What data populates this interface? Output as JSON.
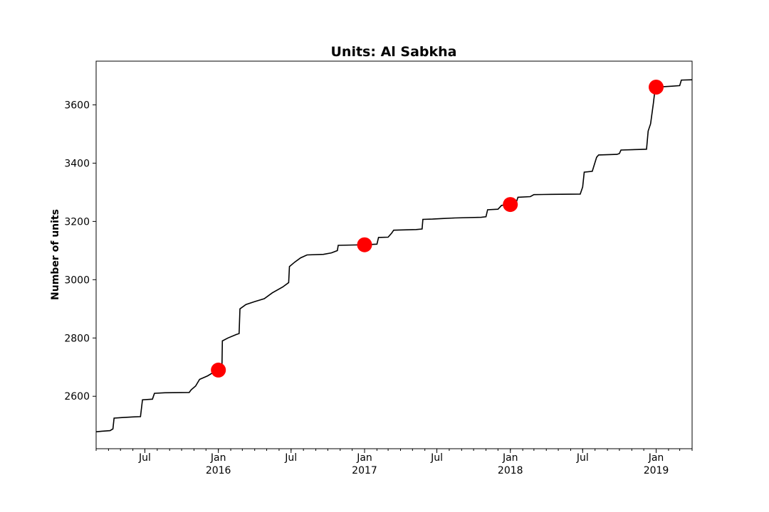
{
  "chart_data": {
    "type": "line",
    "title": "Units: Al Sabkha",
    "xlabel": "",
    "ylabel": "Number of units",
    "xlim": [
      "2015-03-01",
      "2019-04-01"
    ],
    "ylim": [
      2420,
      3750
    ],
    "grid": false,
    "legend": "none",
    "line_color": "#000000",
    "marker_color": "#ff0000",
    "yticks": [
      2600,
      2800,
      3000,
      3200,
      3400,
      3600
    ],
    "xticks": [
      {
        "date": "2015-07-01",
        "label": "Jul",
        "year": ""
      },
      {
        "date": "2016-01-01",
        "label": "Jan",
        "year": "2016"
      },
      {
        "date": "2016-07-01",
        "label": "Jul",
        "year": ""
      },
      {
        "date": "2017-01-01",
        "label": "Jan",
        "year": "2017"
      },
      {
        "date": "2017-07-01",
        "label": "Jul",
        "year": ""
      },
      {
        "date": "2018-01-01",
        "label": "Jan",
        "year": "2018"
      },
      {
        "date": "2018-07-01",
        "label": "Jul",
        "year": ""
      },
      {
        "date": "2019-01-01",
        "label": "Jan",
        "year": "2019"
      }
    ],
    "series": [
      {
        "values": [
          [
            "2015-03-01",
            2478
          ],
          [
            "2015-03-15",
            2480
          ],
          [
            "2015-04-05",
            2482
          ],
          [
            "2015-04-12",
            2488
          ],
          [
            "2015-04-15",
            2525
          ],
          [
            "2015-05-05",
            2527
          ],
          [
            "2015-06-01",
            2529
          ],
          [
            "2015-06-20",
            2530
          ],
          [
            "2015-06-25",
            2588
          ],
          [
            "2015-07-20",
            2590
          ],
          [
            "2015-07-25",
            2610
          ],
          [
            "2015-08-20",
            2612
          ],
          [
            "2015-10-20",
            2613
          ],
          [
            "2015-10-25",
            2622
          ],
          [
            "2015-11-05",
            2635
          ],
          [
            "2015-11-15",
            2658
          ],
          [
            "2015-12-05",
            2670
          ],
          [
            "2015-12-20",
            2682
          ],
          [
            "2016-01-01",
            2690
          ],
          [
            "2016-01-10",
            2700
          ],
          [
            "2016-01-11",
            2790
          ],
          [
            "2016-01-25",
            2800
          ],
          [
            "2016-02-15",
            2812
          ],
          [
            "2016-02-22",
            2815
          ],
          [
            "2016-02-24",
            2900
          ],
          [
            "2016-03-10",
            2915
          ],
          [
            "2016-04-01",
            2925
          ],
          [
            "2016-04-25",
            2935
          ],
          [
            "2016-05-15",
            2955
          ],
          [
            "2016-06-10",
            2975
          ],
          [
            "2016-06-25",
            2990
          ],
          [
            "2016-06-27",
            3045
          ],
          [
            "2016-07-10",
            3060
          ],
          [
            "2016-07-25",
            3075
          ],
          [
            "2016-08-10",
            3085
          ],
          [
            "2016-09-20",
            3087
          ],
          [
            "2016-10-10",
            3092
          ],
          [
            "2016-10-25",
            3100
          ],
          [
            "2016-10-27",
            3118
          ],
          [
            "2016-12-31",
            3120
          ],
          [
            "2017-01-20",
            3121
          ],
          [
            "2017-02-01",
            3122
          ],
          [
            "2017-02-05",
            3145
          ],
          [
            "2017-03-01",
            3146
          ],
          [
            "2017-03-10",
            3160
          ],
          [
            "2017-03-15",
            3170
          ],
          [
            "2017-05-10",
            3172
          ],
          [
            "2017-05-25",
            3174
          ],
          [
            "2017-05-27",
            3207
          ],
          [
            "2017-06-20",
            3208
          ],
          [
            "2017-07-15",
            3210
          ],
          [
            "2017-08-15",
            3212
          ],
          [
            "2017-10-20",
            3214
          ],
          [
            "2017-11-01",
            3216
          ],
          [
            "2017-11-05",
            3240
          ],
          [
            "2017-12-01",
            3242
          ],
          [
            "2017-12-10",
            3255
          ],
          [
            "2018-01-01",
            3258
          ],
          [
            "2018-01-15",
            3262
          ],
          [
            "2018-01-20",
            3283
          ],
          [
            "2018-02-20",
            3285
          ],
          [
            "2018-03-01",
            3292
          ],
          [
            "2018-04-15",
            3293
          ],
          [
            "2018-06-25",
            3294
          ],
          [
            "2018-07-01",
            3318
          ],
          [
            "2018-07-05",
            3369
          ],
          [
            "2018-07-25",
            3372
          ],
          [
            "2018-08-05",
            3420
          ],
          [
            "2018-08-10",
            3428
          ],
          [
            "2018-09-25",
            3430
          ],
          [
            "2018-10-01",
            3433
          ],
          [
            "2018-10-05",
            3445
          ],
          [
            "2018-11-20",
            3447
          ],
          [
            "2018-12-08",
            3448
          ],
          [
            "2018-12-12",
            3510
          ],
          [
            "2018-12-18",
            3535
          ],
          [
            "2018-12-25",
            3605
          ],
          [
            "2018-12-28",
            3640
          ],
          [
            "2019-01-01",
            3660
          ],
          [
            "2019-01-15",
            3662
          ],
          [
            "2019-02-10",
            3664
          ],
          [
            "2019-03-01",
            3666
          ],
          [
            "2019-03-05",
            3685
          ],
          [
            "2019-04-01",
            3686
          ]
        ]
      }
    ],
    "markers": [
      {
        "x": "2016-01-01",
        "y": 2690
      },
      {
        "x": "2017-01-01",
        "y": 3120
      },
      {
        "x": "2018-01-01",
        "y": 3258
      },
      {
        "x": "2019-01-01",
        "y": 3661
      }
    ]
  }
}
